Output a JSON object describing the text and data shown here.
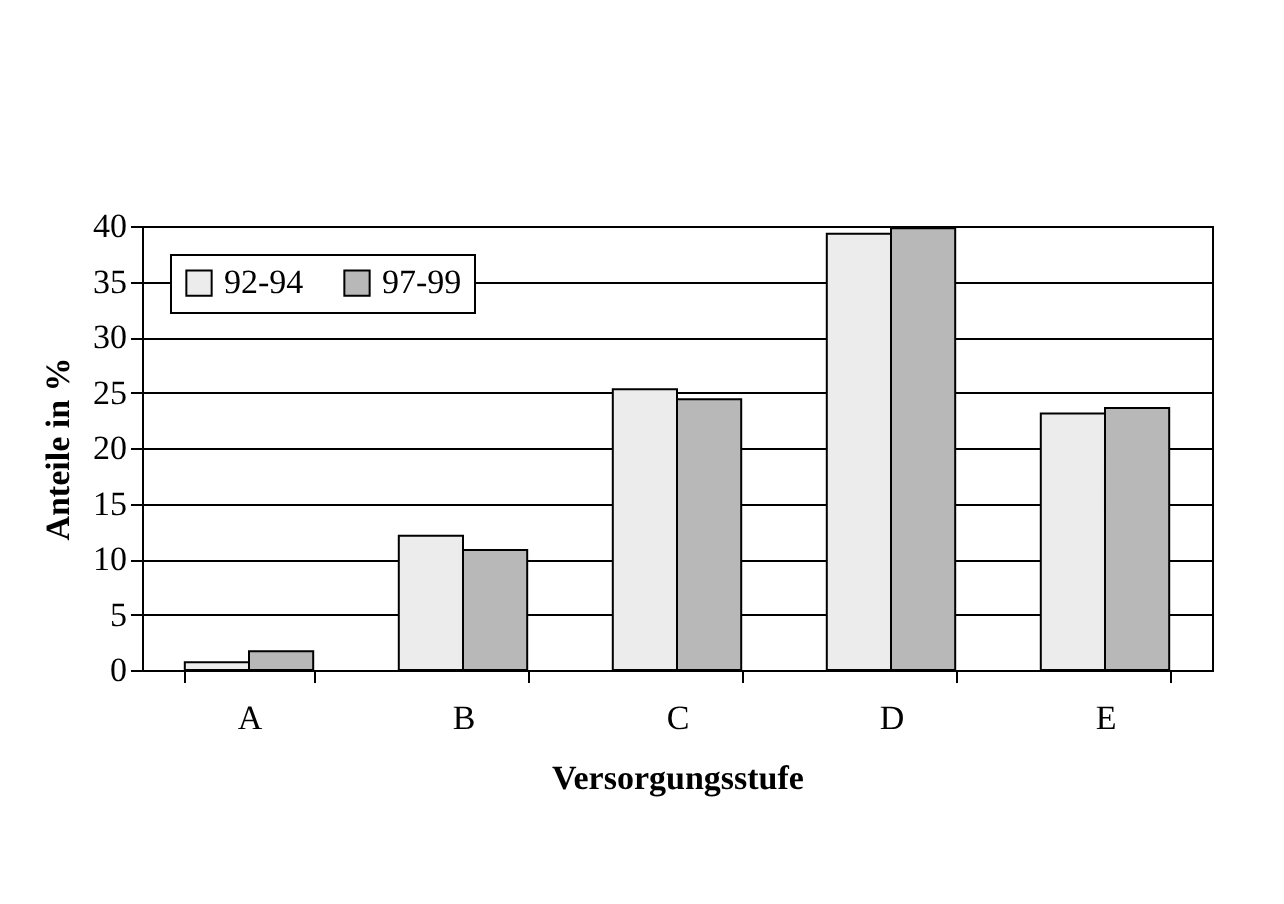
{
  "chart_data": {
    "type": "bar",
    "xlabel": "Versorgungsstufe",
    "ylabel": "Anteile in %",
    "categories": [
      "A",
      "B",
      "C",
      "D",
      "E"
    ],
    "series": [
      {
        "name": "92-94",
        "color": "#ececec",
        "values": [
          0.7,
          12.1,
          25.3,
          39.3,
          23.1
        ]
      },
      {
        "name": "97-99",
        "color": "#b8b8b8",
        "values": [
          1.7,
          10.8,
          24.4,
          39.8,
          23.6
        ]
      }
    ],
    "ylim": [
      0,
      40
    ],
    "yticks": [
      0,
      5,
      10,
      15,
      20,
      25,
      30,
      35,
      40
    ],
    "grid": "y",
    "legend": "top left"
  }
}
